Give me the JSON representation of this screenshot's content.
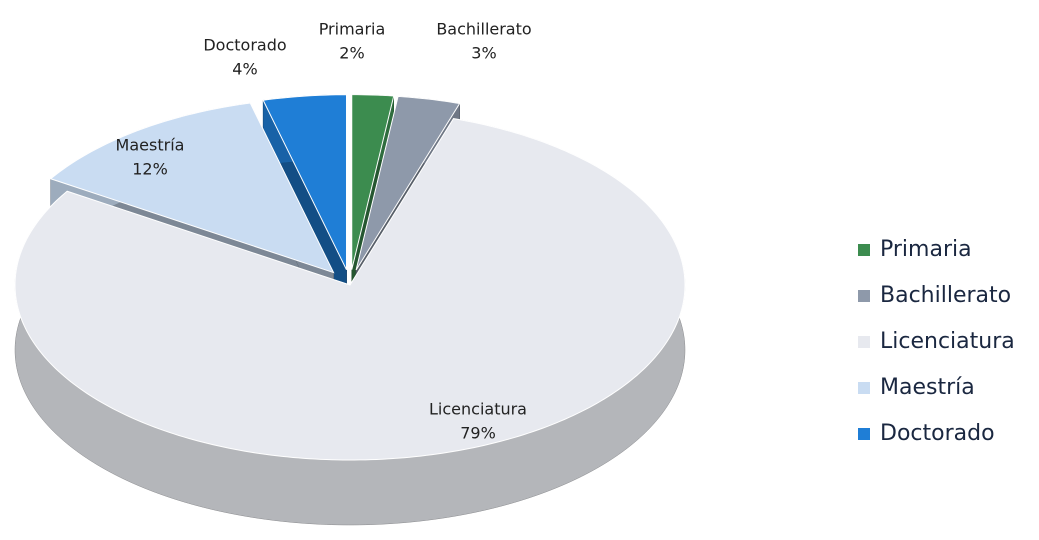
{
  "chart_data": {
    "type": "pie",
    "categories": [
      "Primaria",
      "Bachillerato",
      "Licenciatura",
      "Maestría",
      "Doctorado"
    ],
    "values": [
      2,
      3,
      79,
      12,
      4
    ],
    "value_labels": [
      "2%",
      "3%",
      "79%",
      "12%",
      "4%"
    ],
    "colors": [
      "#3c8c4f",
      "#8e99aa",
      "#e7e9ef",
      "#c9dcf2",
      "#1f7ed6"
    ],
    "legend": "right"
  }
}
